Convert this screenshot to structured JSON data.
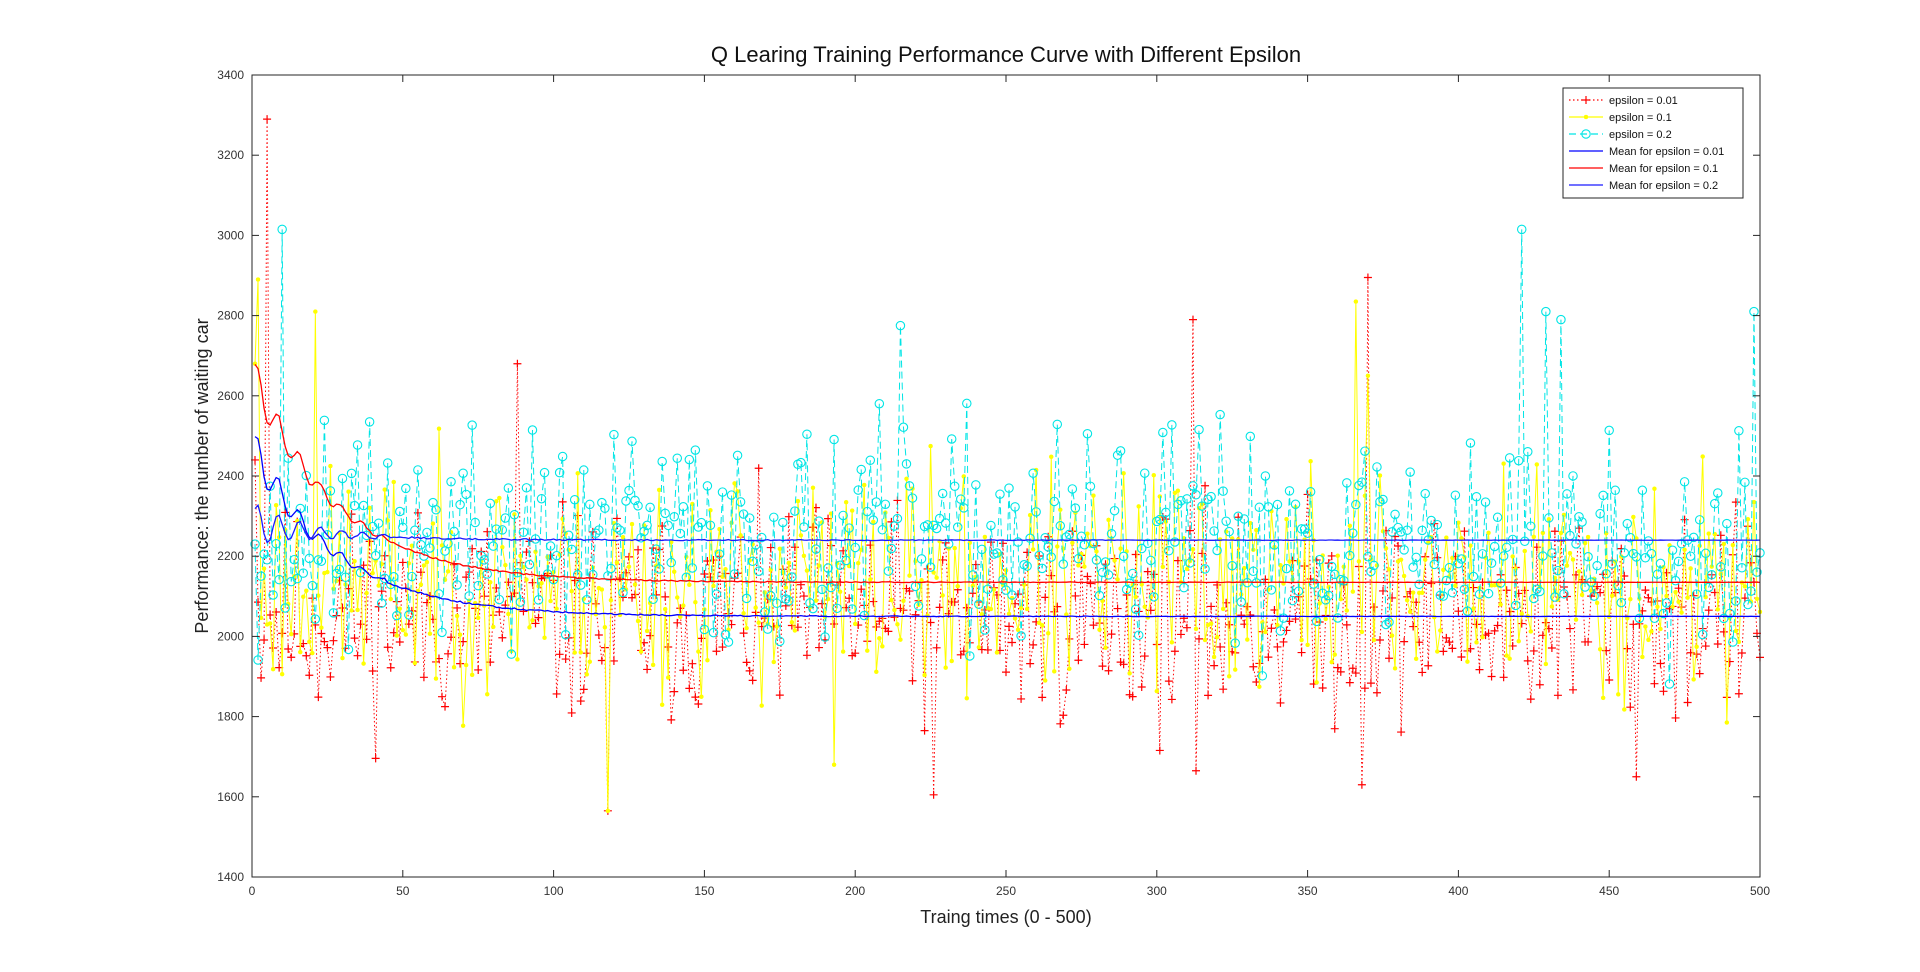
{
  "figure": {
    "background": "#ffffff"
  },
  "chart_data": {
    "type": "line",
    "title": "Q Learing Training Performance Curve with Different Epsilon",
    "xlabel": "Traing times (0 - 500)",
    "ylabel": "Performance: the number of waiting car",
    "xlim": [
      0,
      500
    ],
    "ylim": [
      1400,
      3400
    ],
    "xticks": [
      0,
      50,
      100,
      150,
      200,
      250,
      300,
      350,
      400,
      450,
      500
    ],
    "yticks": [
      1400,
      1600,
      1800,
      2000,
      2200,
      2400,
      2600,
      2800,
      3000,
      3200,
      3400
    ],
    "grid": false,
    "legend_position": "top-right",
    "series": [
      {
        "name": "epsilon = 0.01",
        "kind": "raw",
        "color": "#ff0000",
        "line": "dotted",
        "marker": "plus",
        "seed": 11,
        "center": 2050,
        "spread": 235,
        "first": 2440,
        "spikes": [
          [
            5,
            3290
          ],
          [
            88,
            2680
          ],
          [
            118,
            1565
          ],
          [
            226,
            1605
          ],
          [
            312,
            2790
          ],
          [
            313,
            1665
          ],
          [
            368,
            1630
          ],
          [
            370,
            2895
          ],
          [
            459,
            1650
          ]
        ]
      },
      {
        "name": "epsilon = 0.1",
        "kind": "raw",
        "color": "#ffff00",
        "line": "solid",
        "marker": "dot",
        "seed": 23,
        "center": 2135,
        "spread": 250,
        "first": 2680,
        "spikes": [
          [
            2,
            2890
          ],
          [
            21,
            2810
          ],
          [
            118,
            1565
          ],
          [
            193,
            1680
          ],
          [
            366,
            2835
          ],
          [
            370,
            2650
          ]
        ]
      },
      {
        "name": "epsilon = 0.2",
        "kind": "raw",
        "color": "#00e5e5",
        "line": "dashed",
        "marker": "circle",
        "seed": 37,
        "center": 2240,
        "spread": 240,
        "first": 2230,
        "spikes": [
          [
            10,
            3015
          ],
          [
            215,
            2775
          ],
          [
            421,
            3015
          ],
          [
            429,
            2810
          ],
          [
            434,
            2790
          ],
          [
            498,
            2810
          ]
        ]
      },
      {
        "name": "Mean for epsilon = 0.01",
        "kind": "mean",
        "color": "#0000ff",
        "final": 2050,
        "start": 2460
      },
      {
        "name": "Mean for epsilon = 0.1",
        "kind": "mean",
        "color": "#ff0000",
        "final": 2135,
        "start": 2640
      },
      {
        "name": "Mean for epsilon = 0.2",
        "kind": "mean",
        "color": "#1a1aff",
        "final": 2240,
        "start": 2280
      }
    ]
  }
}
